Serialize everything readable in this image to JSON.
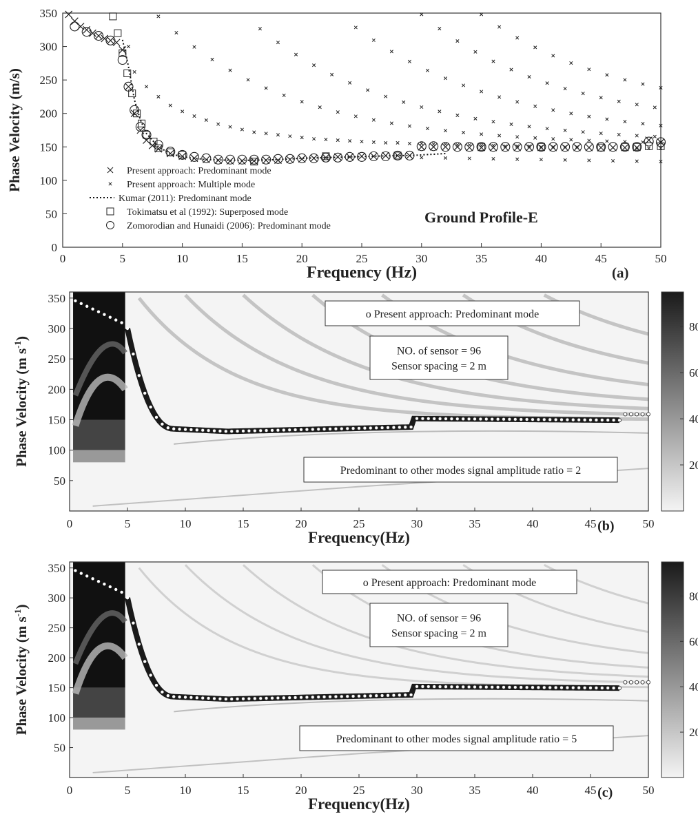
{
  "chart_data": [
    {
      "type": "scatter",
      "panel_label": "(a)",
      "annotation": "Ground Profile-E",
      "xlabel": "Frequency (Hz)",
      "ylabel": "Phase Velocity (m/s)",
      "xlim": [
        0,
        50
      ],
      "ylim": [
        0,
        350
      ],
      "xticks": [
        "0",
        "5",
        "10",
        "15",
        "20",
        "25",
        "30",
        "35",
        "40",
        "45",
        "50"
      ],
      "yticks": [
        "0",
        "50",
        "100",
        "150",
        "200",
        "250",
        "300",
        "350"
      ],
      "legend": [
        "Present approach: Predominant mode",
        "Present approach: Multiple mode",
        "Kumar (2011): Predominant mode",
        "Tokimatsu et al (1992): Superposed mode",
        "Zomorodian and Hunaidi (2006): Predominant mode"
      ],
      "series": [
        {
          "name": "Present approach: Predominant mode",
          "marker": "x",
          "x": [
            0.5,
            1,
            1.5,
            2,
            2.5,
            3,
            3.5,
            4,
            4.5,
            5,
            5.5,
            6,
            6.5,
            7,
            7.5,
            8,
            9,
            10,
            11,
            12,
            13,
            14,
            15,
            16,
            17,
            18,
            19,
            20,
            21,
            22,
            23,
            24,
            25,
            26,
            27,
            28,
            29,
            30,
            31,
            32,
            33,
            34,
            35,
            36,
            37,
            38,
            39,
            40,
            41,
            42,
            43,
            44,
            45,
            46,
            47,
            48,
            49,
            50
          ],
          "y": [
            348,
            338,
            330,
            325,
            320,
            316,
            312,
            309,
            306,
            295,
            240,
            200,
            175,
            160,
            152,
            147,
            140,
            136,
            133,
            131,
            130,
            129,
            129,
            129,
            130,
            130,
            131,
            132,
            133,
            134,
            135,
            135,
            136,
            136,
            137,
            137,
            137,
            150,
            150,
            150,
            150,
            149,
            149,
            149,
            149,
            149,
            149,
            149,
            149,
            149,
            149,
            149,
            149,
            149,
            149,
            149,
            160,
            157
          ]
        },
        {
          "name": "Present approach: Multiple mode",
          "marker": "small-x",
          "x": [
            5.5,
            6,
            7,
            8,
            9,
            10,
            11,
            12,
            13,
            14,
            15,
            16,
            17,
            18,
            19,
            20,
            21,
            22,
            23,
            24,
            25,
            26,
            27,
            28,
            29,
            30,
            31,
            32,
            33,
            34,
            35,
            36,
            37,
            38,
            39,
            40,
            41,
            42,
            43,
            44,
            45,
            46,
            47,
            48,
            49,
            50
          ],
          "y": [
            300,
            262,
            240,
            225,
            212,
            203,
            196,
            190,
            184,
            180,
            176,
            172,
            170,
            168,
            166,
            164,
            162,
            161,
            160,
            159,
            158,
            157,
            156,
            156,
            155,
            155,
            154,
            154,
            153,
            153,
            152,
            152,
            151,
            151,
            151,
            150,
            150,
            150,
            150,
            149,
            149,
            149,
            149,
            148,
            148,
            148
          ]
        },
        {
          "name": "Kumar (2011): Predominant mode",
          "marker": "dotted-line",
          "x": [
            5,
            5.5,
            6,
            6.5,
            7,
            8,
            9,
            10,
            12,
            14,
            16,
            18,
            20,
            22,
            24,
            26,
            28,
            29,
            30,
            31,
            32
          ],
          "y": [
            310,
            270,
            220,
            190,
            170,
            150,
            140,
            135,
            131,
            130,
            130,
            131,
            133,
            134,
            135,
            136,
            137,
            137,
            138,
            139,
            140
          ]
        },
        {
          "name": "Tokimatsu et al (1992): Superposed mode",
          "marker": "square",
          "x": [
            4.2,
            4.6,
            5,
            5.4,
            5.8,
            6.2,
            6.6,
            7,
            7.6,
            8,
            9,
            10,
            16,
            22,
            28,
            35,
            40,
            45,
            47,
            48,
            49,
            50
          ],
          "y": [
            345,
            320,
            290,
            260,
            230,
            200,
            185,
            168,
            158,
            148,
            142,
            138,
            128,
            136,
            137,
            150,
            150,
            149,
            150,
            150,
            151,
            151
          ]
        },
        {
          "name": "Zomorodian and Hunaidi (2006): Predominant mode",
          "marker": "circle",
          "x": [
            1,
            2,
            3,
            4,
            5,
            5.5,
            6,
            6.5,
            7,
            8,
            9,
            10,
            11,
            12,
            13,
            14,
            15,
            16,
            17,
            18,
            19,
            20,
            21,
            22,
            23,
            24,
            25,
            26,
            27,
            28,
            29,
            30,
            31,
            32,
            33,
            34,
            35,
            36,
            37,
            38,
            39,
            40,
            41,
            42,
            43,
            44,
            45,
            46,
            47,
            48,
            49,
            50
          ],
          "y": [
            330,
            322,
            316,
            309,
            280,
            240,
            205,
            180,
            168,
            153,
            143,
            138,
            135,
            133,
            131,
            131,
            131,
            131,
            131,
            132,
            132,
            133,
            133,
            134,
            134,
            135,
            135,
            136,
            136,
            137,
            137,
            151,
            151,
            150,
            150,
            150,
            150,
            150,
            150,
            150,
            150,
            150,
            150,
            150,
            150,
            150,
            150,
            150,
            150,
            150,
            158,
            157
          ]
        }
      ]
    },
    {
      "type": "heatmap",
      "panel_label": "(b)",
      "xlabel": "Frequency(Hz)",
      "ylabel": "Phase Velocity (m s-1)",
      "ylabel_main": "Phase Velocity (m s",
      "ylabel_sup": "-1",
      "ylabel_close": ")",
      "xlim": [
        0,
        50
      ],
      "ylim": [
        0,
        360
      ],
      "xticks": [
        "0",
        "5",
        "10",
        "15",
        "20",
        "25",
        "30",
        "35",
        "40",
        "45",
        "50"
      ],
      "yticks": [
        "50",
        "100",
        "150",
        "200",
        "250",
        "300",
        "350"
      ],
      "colorbar_ticks": [
        "20",
        "40",
        "60",
        "80"
      ],
      "colorbar_range": [
        0,
        95
      ],
      "legend_text": "o  Present approach: Predominant mode",
      "info_line1": "NO. of sensor = 96",
      "info_line2": "Sensor spacing = 2 m",
      "ratio_text": "Predominant to other modes signal amplitude ratio = 2",
      "amplitude_ratio": 2
    },
    {
      "type": "heatmap",
      "panel_label": "(c)",
      "xlabel": "Frequency(Hz)",
      "ylabel": "Phase Velocity (m s-1)",
      "ylabel_main": "Phase Velocity (m s",
      "ylabel_sup": "-1",
      "ylabel_close": ")",
      "xlim": [
        0,
        50
      ],
      "ylim": [
        0,
        360
      ],
      "xticks": [
        "0",
        "5",
        "10",
        "15",
        "20",
        "25",
        "30",
        "35",
        "40",
        "45",
        "50"
      ],
      "yticks": [
        "50",
        "100",
        "150",
        "200",
        "250",
        "300",
        "350"
      ],
      "colorbar_ticks": [
        "20",
        "40",
        "60",
        "80"
      ],
      "colorbar_range": [
        0,
        95
      ],
      "legend_text": "o  Present approach: Predominant mode",
      "info_line1": "NO. of sensor = 96",
      "info_line2": "Sensor spacing = 2 m",
      "ratio_text": "Predominant to other modes signal amplitude ratio = 5",
      "amplitude_ratio": 5
    }
  ]
}
